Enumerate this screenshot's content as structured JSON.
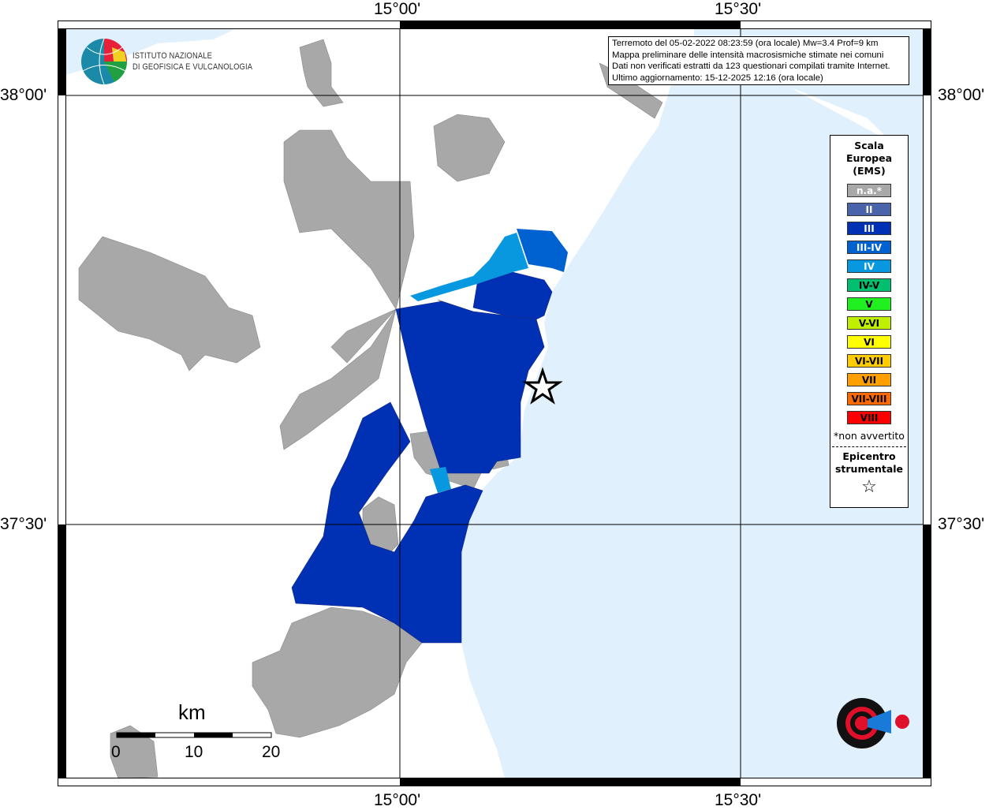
{
  "map": {
    "ticks": {
      "lon": [
        "15°00'",
        "15°30'"
      ],
      "lat": [
        "38°00'",
        "37°30'"
      ]
    },
    "info": [
      "Terremoto del 05-02-2022 08:23:59 (ora locale) Mw=3.4 Prof=9 km",
      "Mappa preliminare delle intensità macrosismiche stimate nei comuni",
      "Dati non verificati estratti da 123 questionari compilati tramite Internet.",
      "Ultimo aggiornamento: 15-12-2025 12:16 (ora locale)"
    ],
    "logo_ingv": [
      "ISTITUTO NAZIONALE",
      "DI GEOFISICA E VULCANOLOGIA"
    ],
    "logo_hsit": "www.haisentitoilterremoto.it",
    "colors": {
      "sea": "#e0f0fc",
      "land": "#ffffff",
      "na": "#a8a8a8",
      "III": "#0030b4",
      "III-IV": "#0060d0",
      "IV": "#0898e0"
    },
    "legend": {
      "title": [
        "Scala",
        "Europea",
        "(EMS)"
      ],
      "items": [
        {
          "label": "n.a.*",
          "color": "#a8a8a8",
          "text": "#ffffff"
        },
        {
          "label": "II",
          "color": "#4a64ac",
          "text": "#ffffff"
        },
        {
          "label": "III",
          "color": "#0030b4",
          "text": "#ffffff"
        },
        {
          "label": "III-IV",
          "color": "#0062d0",
          "text": "#ffffff"
        },
        {
          "label": "IV",
          "color": "#0898e0",
          "text": "#ffffff"
        },
        {
          "label": "IV-V",
          "color": "#00c070",
          "text": "#000000"
        },
        {
          "label": "V",
          "color": "#20f020",
          "text": "#000000"
        },
        {
          "label": "V-VI",
          "color": "#c0f000",
          "text": "#000000"
        },
        {
          "label": "VI",
          "color": "#ffff00",
          "text": "#000000"
        },
        {
          "label": "VI-VII",
          "color": "#ffcc00",
          "text": "#000000"
        },
        {
          "label": "VII",
          "color": "#ffa000",
          "text": "#000000"
        },
        {
          "label": "VII-VIII",
          "color": "#ff6a00",
          "text": "#000000"
        },
        {
          "label": "VIII",
          "color": "#ff0000",
          "text": "#000000"
        }
      ],
      "note": "*non avvertito",
      "epicenter_title": [
        "Epicentro",
        "strumentale"
      ],
      "epicenter_symbol": "☆"
    },
    "scale": {
      "unit": "km",
      "labels": [
        "0",
        "10",
        "20"
      ]
    }
  }
}
